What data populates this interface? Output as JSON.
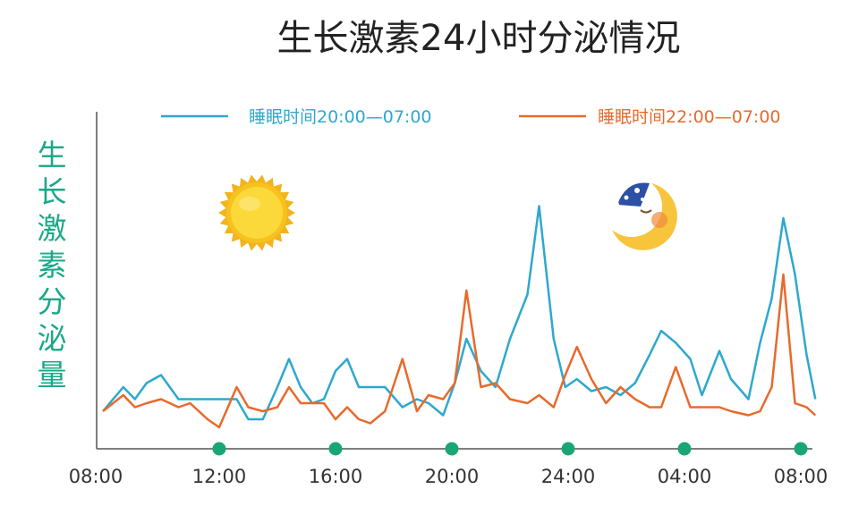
{
  "chart_data": {
    "type": "line",
    "title": "生长激素24小时分泌情况",
    "ylabel": "生长激素分泌量",
    "xlabel": "",
    "y_axis_tick_labels": false,
    "grid": false,
    "legend_position": "top",
    "x_tick_labels": [
      "08:00",
      "12:00",
      "16:00",
      "20:00",
      "24:00",
      "04:00",
      "08:00"
    ],
    "x_range_hours": [
      0,
      24.6
    ],
    "y_range": [
      0,
      100
    ],
    "colors": {
      "series_1": "#2ea8cf",
      "series_2": "#e86a2b",
      "tick_marker": "#1aa674",
      "axis": "#555555",
      "ylabel": "#1aa889"
    },
    "decorations": [
      "sun-icon",
      "sleeping-moon-icon"
    ],
    "series": [
      {
        "name": "睡眠时间20:00—07:00",
        "x": [
          0,
          0.7,
          1.1,
          1.5,
          2.0,
          2.6,
          3.0,
          3.6,
          4.0,
          4.6,
          5.0,
          5.5,
          6.0,
          6.4,
          6.8,
          7.2,
          7.6,
          8.0,
          8.4,
          8.8,
          9.2,
          9.7,
          10.3,
          10.8,
          11.2,
          11.7,
          12.1,
          12.5,
          13.0,
          13.5,
          14.0,
          14.6,
          15.0,
          15.5,
          15.9,
          16.3,
          16.8,
          17.3,
          17.8,
          18.3,
          18.8,
          19.2,
          19.7,
          20.2,
          20.6,
          21.2,
          21.6,
          22.2,
          22.6,
          23.0,
          23.4,
          23.8,
          24.2,
          24.5
        ],
        "y": [
          4,
          10,
          7,
          11,
          13,
          7,
          7,
          7,
          7,
          7,
          2,
          2,
          10,
          17,
          10,
          6,
          7,
          14,
          17,
          10,
          10,
          10,
          5,
          7,
          6,
          3,
          11,
          22,
          14,
          10,
          22,
          33,
          55,
          22,
          10,
          12,
          9,
          10,
          8,
          11,
          18,
          24,
          21,
          17,
          8,
          19,
          12,
          7,
          21,
          32,
          52,
          38,
          18,
          7
        ]
      },
      {
        "name": "睡眠时间22:00—07:00",
        "x": [
          0,
          0.7,
          1.1,
          1.5,
          2.0,
          2.6,
          3.0,
          3.6,
          4.0,
          4.6,
          5.0,
          5.5,
          6.0,
          6.4,
          6.8,
          7.2,
          7.6,
          8.0,
          8.4,
          8.8,
          9.2,
          9.7,
          10.3,
          10.8,
          11.2,
          11.7,
          12.1,
          12.5,
          13.0,
          13.5,
          14.0,
          14.6,
          15.0,
          15.5,
          15.9,
          16.3,
          16.8,
          17.3,
          17.8,
          18.3,
          18.8,
          19.2,
          19.7,
          20.2,
          20.6,
          21.2,
          21.6,
          22.2,
          22.6,
          23.0,
          23.4,
          23.8,
          24.2,
          24.5
        ],
        "y": [
          4,
          8,
          5,
          6,
          7,
          5,
          6,
          2,
          0,
          10,
          5,
          4,
          5,
          10,
          6,
          6,
          6,
          2,
          5,
          2,
          1,
          4,
          17,
          4,
          8,
          7,
          11,
          34,
          10,
          11,
          7,
          6,
          8,
          5,
          13,
          20,
          12,
          6,
          10,
          7,
          5,
          5,
          15,
          5,
          5,
          5,
          4,
          3,
          4,
          10,
          38,
          6,
          5,
          3
        ]
      }
    ]
  }
}
